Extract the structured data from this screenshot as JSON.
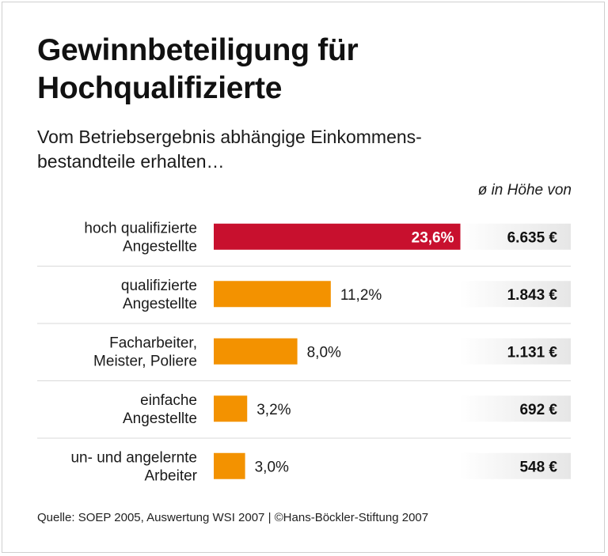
{
  "title_line1": "Gewinnbeteiligung für",
  "title_line2": "Hochqualifizierte",
  "subtitle_line1": "Vom Betriebsergebnis abhängige Einkommens-",
  "subtitle_line2": "bestandteile erhalten…",
  "avg_header": "ø in Höhe von",
  "source": "Quelle: SOEP 2005, Auswertung WSI 2007 | ©Hans-Böckler-Stiftung 2007",
  "colors": {
    "highlight": "#c8102e",
    "bar": "#f39200",
    "separator": "#d9d9d9",
    "value_box_start": "#ffffff",
    "value_box_end": "#e6e6e6"
  },
  "chart_data": {
    "type": "bar",
    "orientation": "horizontal",
    "categories": [
      [
        "hoch qualifizierte",
        "Angestellte"
      ],
      [
        "qualifizierte",
        "Angestellte"
      ],
      [
        "Facharbeiter,",
        "Meister, Poliere"
      ],
      [
        "einfache",
        "Angestellte"
      ],
      [
        "un- und angelernte",
        "Arbeiter"
      ]
    ],
    "values": [
      23.6,
      11.2,
      8.0,
      3.2,
      3.0
    ],
    "value_labels": [
      "23,6%",
      "11,2%",
      "8,0%",
      "3,2%",
      "3,0%"
    ],
    "amounts": [
      "6.635 €",
      "1.843 €",
      "1.131 €",
      "692 €",
      "548 €"
    ],
    "highlight_index": 0,
    "xlim": [
      0,
      25
    ],
    "grid": false,
    "legend": "none"
  }
}
